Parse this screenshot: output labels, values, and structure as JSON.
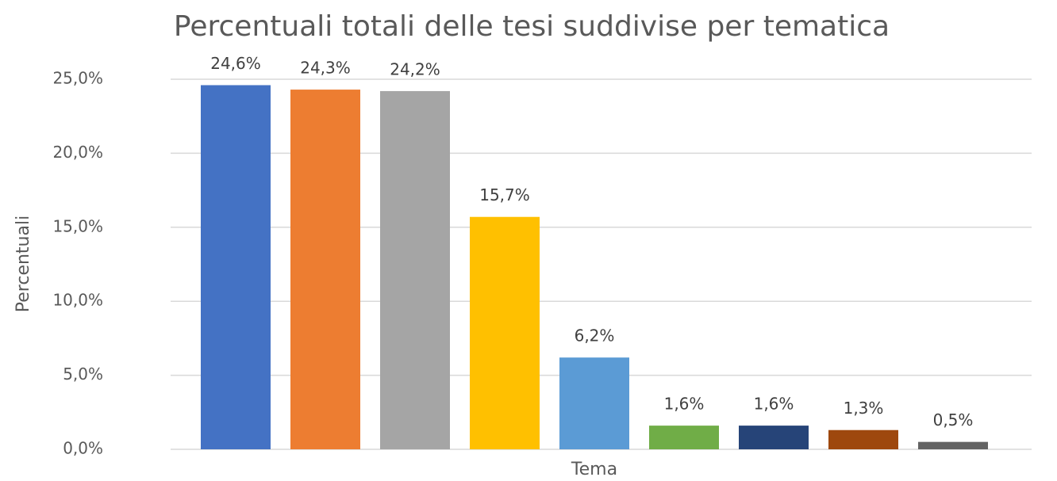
{
  "chart_data": {
    "type": "bar",
    "title": "Percentuali totali delle tesi suddivise per tematica",
    "x_label": "Tema",
    "y_label": "Percentuali",
    "categories": [
      null,
      null,
      null,
      null,
      null,
      null,
      null,
      null,
      null
    ],
    "values": [
      24.6,
      24.3,
      24.2,
      15.7,
      6.2,
      1.6,
      1.6,
      1.3,
      0.5
    ],
    "value_labels": [
      "24,6%",
      "24,3%",
      "24,2%",
      "15,7%",
      "6,2%",
      "1,6%",
      "1,6%",
      "1,3%",
      "0,5%"
    ],
    "colors": [
      "#4472c4",
      "#ed7d31",
      "#a5a5a5",
      "#ffc000",
      "#5b9bd5",
      "#70ad47",
      "#264478",
      "#9e480e",
      "#636363"
    ],
    "ylim": [
      0,
      25
    ],
    "yticks": [
      {
        "value": 0,
        "label": "0,0%"
      },
      {
        "value": 5,
        "label": "5,0%"
      },
      {
        "value": 10,
        "label": "10,0%"
      },
      {
        "value": 15,
        "label": "15,0%"
      },
      {
        "value": 20,
        "label": "20,0%"
      },
      {
        "value": 25,
        "label": "25,0%"
      }
    ],
    "grid": true
  }
}
